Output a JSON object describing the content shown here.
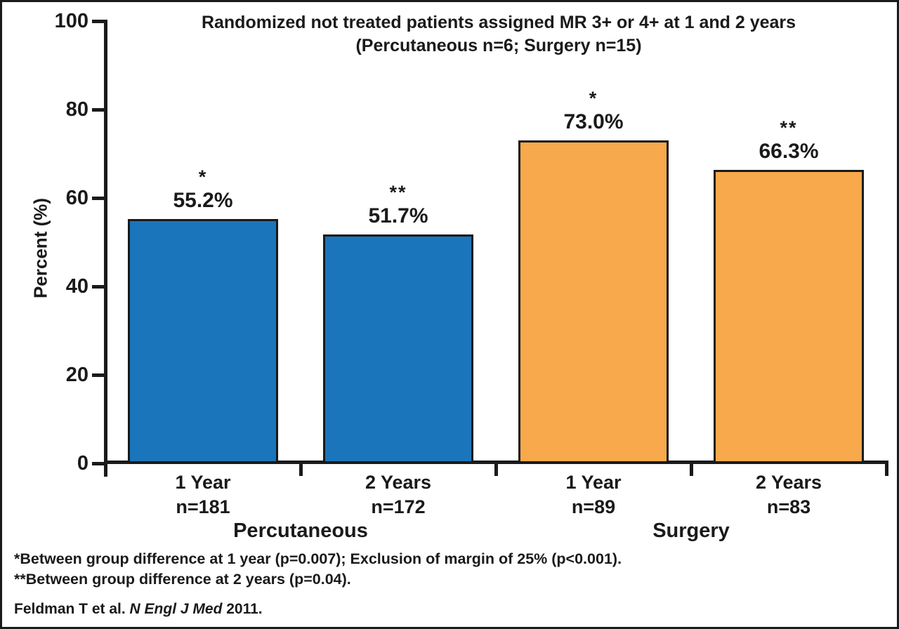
{
  "chart_data": {
    "type": "bar",
    "title": "Randomized not treated patients assigned MR 3+ or 4+ at 1 and 2 years",
    "subtitle": "(Percutaneous n=6; Surgery n=15)",
    "ylabel": "Percent (%)",
    "ylim": [
      0,
      100
    ],
    "yticks": [
      0,
      20,
      40,
      60,
      80,
      100
    ],
    "grid": false,
    "legend": "none",
    "categories": [
      "1 Year",
      "2 Years",
      "1 Year",
      "2 Years"
    ],
    "bars": [
      {
        "group": "Percutaneous",
        "label": "1 Year",
        "n_label": "n=181",
        "value": 55.2,
        "value_label": "55.2%",
        "significance": "*",
        "color": "#1B75BB"
      },
      {
        "group": "Percutaneous",
        "label": "2 Years",
        "n_label": "n=172",
        "value": 51.7,
        "value_label": "51.7%",
        "significance": "**",
        "color": "#1B75BB"
      },
      {
        "group": "Surgery",
        "label": "1 Year",
        "n_label": "n=89",
        "value": 73.0,
        "value_label": "73.0%",
        "significance": "*",
        "color": "#F7A94B"
      },
      {
        "group": "Surgery",
        "label": "2 Years",
        "n_label": "n=83",
        "value": 66.3,
        "value_label": "66.3%",
        "significance": "**",
        "color": "#F7A94B"
      }
    ],
    "group_labels": [
      "Percutaneous",
      "Surgery"
    ],
    "footnotes": [
      "*Between group difference at 1 year (p=0.007); Exclusion of margin of 25% (p<0.001).",
      "**Between group difference at 2 years (p=0.04)."
    ],
    "citation": {
      "prefix": "Feldman T et al. ",
      "journal": "N Engl J Med",
      "suffix": " 2011."
    },
    "colors": {
      "percutaneous_bar": "#1B75BB",
      "surgery_bar": "#F7A94B",
      "axis": "#1A1A1A",
      "background": "#FFFFFF"
    }
  }
}
